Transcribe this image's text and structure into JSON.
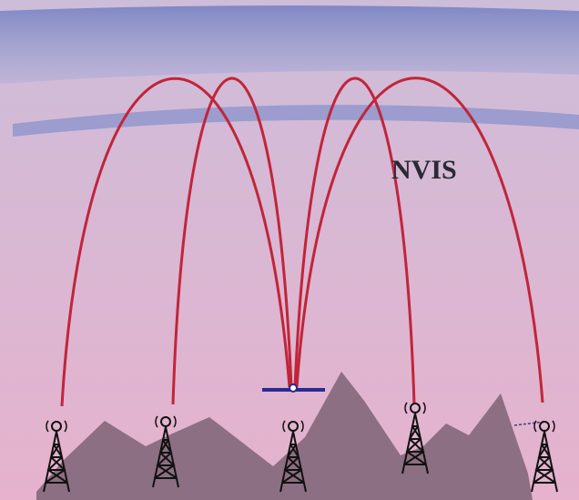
{
  "label": "NVIS"
}
